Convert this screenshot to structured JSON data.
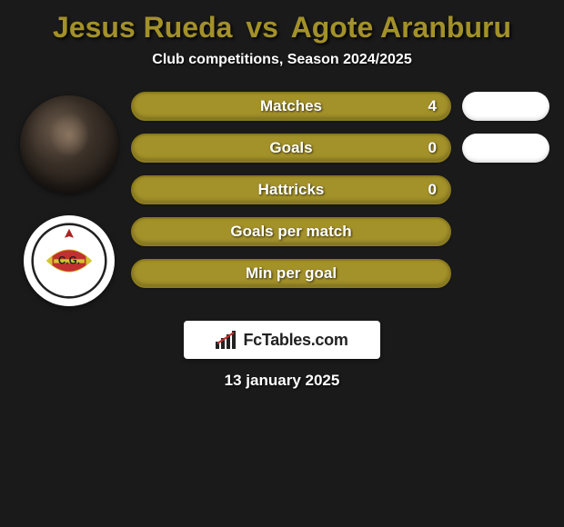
{
  "header": {
    "player1": "Jesus Rueda",
    "vs": "vs",
    "player2": "Agote Aranburu",
    "title_color": "#a39129",
    "subtitle": "Club competitions, Season 2024/2025"
  },
  "stats": [
    {
      "label": "Matches",
      "value": "4",
      "show_chip": true
    },
    {
      "label": "Goals",
      "value": "0",
      "show_chip": true
    },
    {
      "label": "Hattricks",
      "value": "0",
      "show_chip": false
    },
    {
      "label": "Goals per match",
      "value": "",
      "show_chip": false
    },
    {
      "label": "Min per goal",
      "value": "",
      "show_chip": false
    }
  ],
  "styling": {
    "bar_fill": "#a39129",
    "bar_border": "#8a7a1f",
    "chip_bg": "#ffffff",
    "background": "#1a1a1a",
    "text_color": "#ffffff"
  },
  "footer": {
    "logo_text": "FcTables.com",
    "date": "13 january 2025"
  }
}
